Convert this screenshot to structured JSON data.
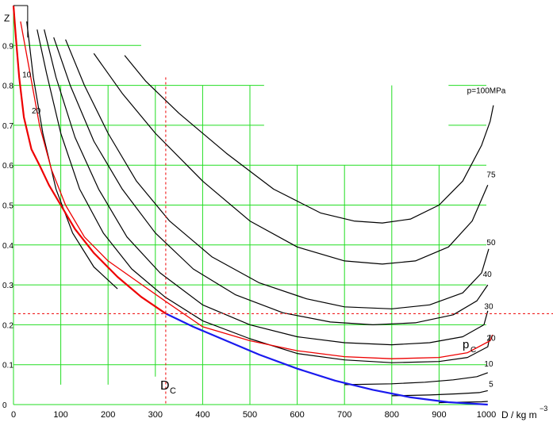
{
  "chart_data": {
    "type": "line",
    "xlabel": "D / kg m",
    "xlabel_exp": "−3",
    "ylabel": "Z",
    "xlim": [
      0,
      1000
    ],
    "ylim": [
      0,
      1
    ],
    "x_ticks": [
      0,
      100,
      200,
      300,
      400,
      500,
      600,
      700,
      800,
      900,
      1000
    ],
    "y_ticks": [
      0,
      0.1,
      0.2,
      0.3,
      0.4,
      0.5,
      0.6,
      0.7,
      0.8,
      0.9
    ],
    "x_tick_labels": [
      "0",
      "100",
      "200",
      "300",
      "400",
      "500",
      "600",
      "700",
      "800",
      "900",
      "1000"
    ],
    "y_tick_labels": [
      "0",
      "0.1",
      "0.2",
      "0.3",
      "0.4",
      "0.5",
      "0.6",
      "0.7",
      "0.8",
      "0.9"
    ],
    "grid": true,
    "colors": {
      "grid": "#22dd22",
      "isobar": "#000000",
      "critical_isobar": "#ee0000",
      "saturated_vapor": "#ee0000",
      "saturated_liquid": "#1a1aee",
      "critical_lines": "#ee0000"
    },
    "critical_point": {
      "D": 322,
      "Z": 0.228,
      "D_label": "D",
      "D_sub": "C",
      "p_label": "p",
      "p_sub": "C"
    },
    "series": [
      {
        "name": "p=100MPa",
        "color": "#000000",
        "points": [
          [
            235,
            0.875
          ],
          [
            280,
            0.81
          ],
          [
            350,
            0.73
          ],
          [
            450,
            0.63
          ],
          [
            550,
            0.54
          ],
          [
            650,
            0.48
          ],
          [
            720,
            0.46
          ],
          [
            780,
            0.455
          ],
          [
            840,
            0.465
          ],
          [
            900,
            0.5
          ],
          [
            950,
            0.56
          ],
          [
            990,
            0.65
          ],
          [
            1008,
            0.71
          ],
          [
            1015,
            0.75
          ]
        ]
      },
      {
        "name": "75",
        "color": "#000000",
        "points": [
          [
            170,
            0.88
          ],
          [
            230,
            0.78
          ],
          [
            300,
            0.68
          ],
          [
            400,
            0.56
          ],
          [
            500,
            0.46
          ],
          [
            600,
            0.395
          ],
          [
            700,
            0.36
          ],
          [
            780,
            0.352
          ],
          [
            850,
            0.36
          ],
          [
            920,
            0.395
          ],
          [
            970,
            0.46
          ],
          [
            1003,
            0.55
          ]
        ]
      },
      {
        "name": "50",
        "color": "#000000",
        "points": [
          [
            110,
            0.915
          ],
          [
            150,
            0.8
          ],
          [
            200,
            0.68
          ],
          [
            260,
            0.56
          ],
          [
            330,
            0.46
          ],
          [
            420,
            0.37
          ],
          [
            520,
            0.305
          ],
          [
            620,
            0.265
          ],
          [
            700,
            0.245
          ],
          [
            800,
            0.24
          ],
          [
            880,
            0.25
          ],
          [
            950,
            0.28
          ],
          [
            990,
            0.33
          ],
          [
            1005,
            0.39
          ]
        ]
      },
      {
        "name": "40",
        "color": "#000000",
        "points": [
          [
            85,
            0.92
          ],
          [
            120,
            0.8
          ],
          [
            170,
            0.66
          ],
          [
            230,
            0.54
          ],
          [
            300,
            0.43
          ],
          [
            380,
            0.34
          ],
          [
            470,
            0.275
          ],
          [
            570,
            0.23
          ],
          [
            670,
            0.207
          ],
          [
            760,
            0.2
          ],
          [
            850,
            0.205
          ],
          [
            930,
            0.225
          ],
          [
            980,
            0.26
          ],
          [
            1003,
            0.3
          ]
        ]
      },
      {
        "name": "30",
        "color": "#000000",
        "points": [
          [
            65,
            0.94
          ],
          [
            90,
            0.82
          ],
          [
            130,
            0.67
          ],
          [
            180,
            0.54
          ],
          [
            240,
            0.42
          ],
          [
            310,
            0.33
          ],
          [
            400,
            0.25
          ],
          [
            500,
            0.2
          ],
          [
            600,
            0.17
          ],
          [
            700,
            0.155
          ],
          [
            800,
            0.15
          ],
          [
            880,
            0.155
          ],
          [
            950,
            0.17
          ],
          [
            995,
            0.2
          ],
          [
            1003,
            0.235
          ]
        ]
      },
      {
        "name": "20",
        "color": "#000000",
        "points": [
          [
            50,
            0.94
          ],
          [
            70,
            0.83
          ],
          [
            100,
            0.68
          ],
          [
            140,
            0.54
          ],
          [
            190,
            0.43
          ],
          [
            250,
            0.34
          ],
          [
            320,
            0.27
          ],
          [
            400,
            0.21
          ],
          [
            500,
            0.165
          ],
          [
            600,
            0.128
          ],
          [
            700,
            0.112
          ],
          [
            800,
            0.105
          ],
          [
            900,
            0.108
          ],
          [
            960,
            0.118
          ],
          [
            1003,
            0.145
          ],
          [
            1008,
            0.175
          ]
        ]
      },
      {
        "name": "10",
        "color": "#000000",
        "points": [
          [
            28,
            0.96
          ],
          [
            42,
            0.82
          ],
          [
            62,
            0.68
          ],
          [
            90,
            0.54
          ],
          [
            125,
            0.43
          ],
          [
            170,
            0.345
          ],
          [
            220,
            0.29
          ]
        ]
      },
      {
        "name": "",
        "color": "#000000",
        "points": [
          [
            700,
            0.05
          ],
          [
            800,
            0.052
          ],
          [
            870,
            0.056
          ],
          [
            930,
            0.062
          ],
          [
            980,
            0.07
          ],
          [
            1003,
            0.08
          ]
        ]
      },
      {
        "name": "5",
        "color": "#000000",
        "points": [
          [
            800,
            0.022
          ],
          [
            880,
            0.024
          ],
          [
            940,
            0.027
          ],
          [
            985,
            0.03
          ],
          [
            1003,
            0.035
          ]
        ]
      },
      {
        "name": "",
        "color": "#000000",
        "points": [
          [
            900,
            0.005
          ],
          [
            950,
            0.006
          ],
          [
            990,
            0.007
          ],
          [
            1003,
            0.008
          ]
        ]
      },
      {
        "name": "",
        "color": "#ee0000",
        "width": 1.3,
        "points": [
          [
            15,
            0.96
          ],
          [
            35,
            0.83
          ],
          [
            55,
            0.7
          ],
          [
            80,
            0.59
          ],
          [
            110,
            0.5
          ],
          [
            150,
            0.42
          ],
          [
            200,
            0.36
          ],
          [
            260,
            0.31
          ],
          [
            320,
            0.26
          ],
          [
            400,
            0.195
          ],
          [
            500,
            0.16
          ],
          [
            600,
            0.135
          ],
          [
            700,
            0.12
          ],
          [
            800,
            0.115
          ],
          [
            900,
            0.118
          ],
          [
            960,
            0.13
          ],
          [
            1008,
            0.16
          ],
          [
            1013,
            0.175
          ]
        ]
      },
      {
        "name": "",
        "color": "#ee0000",
        "width": 2.2,
        "points": [
          [
            0,
            1.0
          ],
          [
            5,
            0.92
          ],
          [
            12,
            0.82
          ],
          [
            22,
            0.72
          ],
          [
            38,
            0.64
          ],
          [
            55,
            0.6
          ],
          [
            75,
            0.55
          ],
          [
            100,
            0.5
          ],
          [
            130,
            0.44
          ],
          [
            170,
            0.38
          ],
          [
            220,
            0.32
          ],
          [
            270,
            0.27
          ],
          [
            322,
            0.228
          ]
        ]
      },
      {
        "name": "",
        "color": "#1a1aee",
        "width": 2.2,
        "points": [
          [
            322,
            0.228
          ],
          [
            380,
            0.195
          ],
          [
            450,
            0.16
          ],
          [
            520,
            0.125
          ],
          [
            600,
            0.09
          ],
          [
            680,
            0.06
          ],
          [
            760,
            0.037
          ],
          [
            840,
            0.018
          ],
          [
            920,
            0.006
          ],
          [
            1003,
            0.0
          ]
        ]
      }
    ],
    "curve_labels": [
      {
        "text": "p=100MPa",
        "x": 1000,
        "y": 0.78
      },
      {
        "text": "75",
        "x": 1010,
        "y": 0.57
      },
      {
        "text": "50",
        "x": 1010,
        "y": 0.4
      },
      {
        "text": "40",
        "x": 1002,
        "y": 0.32
      },
      {
        "text": "30",
        "x": 1005,
        "y": 0.24
      },
      {
        "text": "20",
        "x": 1010,
        "y": 0.16
      },
      {
        "text": "10",
        "x": 1005,
        "y": 0.095
      },
      {
        "text": "5",
        "x": 1010,
        "y": 0.045
      },
      {
        "text": "10",
        "x": 28,
        "y": 0.82
      },
      {
        "text": "20",
        "x": 48,
        "y": 0.73
      }
    ]
  }
}
